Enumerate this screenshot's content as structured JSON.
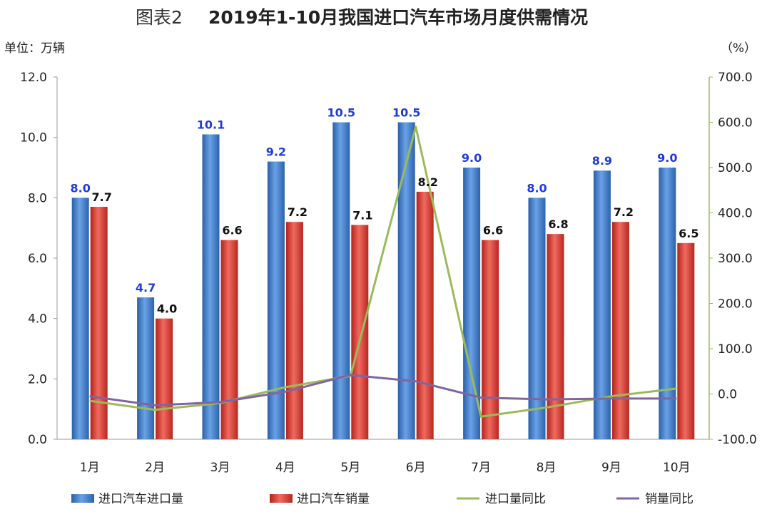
{
  "chart_data": {
    "type": "bar",
    "title_prefix": "图表2",
    "title": "2019年1-10月我国进口汽车市场月度供需情况",
    "left_unit": "单位：万辆",
    "right_unit": "（%）",
    "categories": [
      "1月",
      "2月",
      "3月",
      "4月",
      "5月",
      "6月",
      "7月",
      "8月",
      "9月",
      "10月"
    ],
    "y_left": {
      "range": [
        0,
        12
      ],
      "ticks": [
        "0.0",
        "2.0",
        "4.0",
        "6.0",
        "8.0",
        "10.0",
        "12.0"
      ]
    },
    "y_right": {
      "range": [
        -100,
        700
      ],
      "ticks": [
        "-100.0",
        "0.0",
        "100.0",
        "200.0",
        "300.0",
        "400.0",
        "500.0",
        "600.0",
        "700.0"
      ]
    },
    "bar_series": [
      {
        "name": "进口汽车进口量",
        "color": "#3a78c9",
        "values": [
          8.0,
          4.7,
          10.1,
          9.2,
          10.5,
          10.5,
          9.0,
          8.0,
          8.9,
          9.0
        ],
        "labels": [
          "8.0",
          "4.7",
          "10.1",
          "9.2",
          "10.5",
          "10.5",
          "9.0",
          "8.0",
          "8.9",
          "9.0"
        ]
      },
      {
        "name": "进口汽车销量",
        "color": "#d9332b",
        "values": [
          7.7,
          4.0,
          6.6,
          7.2,
          7.1,
          8.2,
          6.6,
          6.8,
          7.2,
          6.5
        ],
        "labels": [
          "7.7",
          "4.0",
          "6.6",
          "7.2",
          "7.1",
          "8.2",
          "6.6",
          "6.8",
          "7.2",
          "6.5"
        ]
      }
    ],
    "line_series": [
      {
        "name": "进口量同比",
        "color": "#9bbb59",
        "axis": "right",
        "values": [
          -15,
          -35,
          -20,
          15,
          40,
          590,
          -50,
          -30,
          -5,
          12
        ]
      },
      {
        "name": "销量同比",
        "color": "#8064a2",
        "axis": "right",
        "values": [
          -5,
          -25,
          -18,
          5,
          42,
          28,
          -8,
          -12,
          -10,
          -10
        ]
      }
    ],
    "legend_position": "bottom",
    "grid": false
  }
}
